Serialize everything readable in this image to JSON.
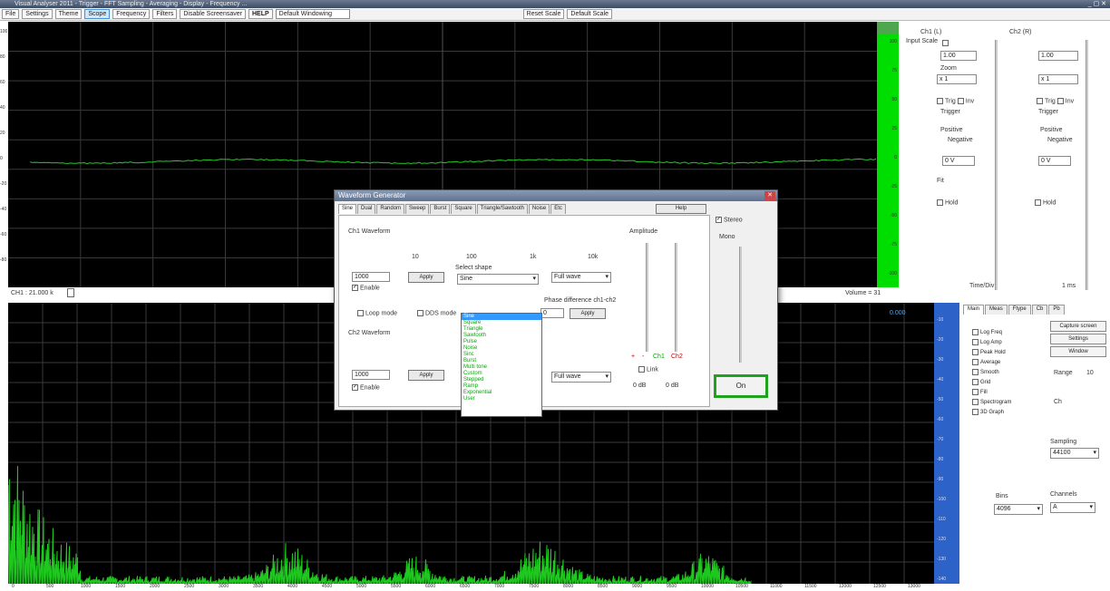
{
  "window": {
    "title": "Visual Analyser 2011 - Trigger - FFT Sampling - Averaging - Display - Frequency ..."
  },
  "menu": {
    "items": [
      "File",
      "Settings",
      "Theme",
      "Scope",
      "Frequency",
      "Filters",
      "Disable Screensaver",
      "HELP"
    ],
    "select_value": "Default Windowing",
    "reset_scale": "Reset Scale",
    "default_scale": "Default Scale"
  },
  "scope": {
    "y_labels": [
      "100",
      "80",
      "60",
      "40",
      "20",
      "0",
      "-20",
      "-40",
      "-60",
      "-80"
    ],
    "volume_label": "Volume = 31",
    "ch_label": "CH1 : 21.000 k",
    "meter_labels": [
      "100",
      "75",
      "50",
      "25",
      "0",
      "-25",
      "-50",
      "-75",
      "-100"
    ]
  },
  "spectrum": {
    "readout": "0.000",
    "db_labels": [
      "-10",
      "-20",
      "-30",
      "-40",
      "-50",
      "-60",
      "-70",
      "-80",
      "-90",
      "-100",
      "-110",
      "-120",
      "-130",
      "-140"
    ],
    "x_labels": [
      "0",
      "500",
      "1000",
      "1500",
      "2000",
      "2500",
      "3000",
      "3500",
      "4000",
      "4500",
      "5000",
      "5500",
      "6000",
      "6500",
      "7000",
      "7500",
      "8000",
      "8500",
      "9000",
      "9500",
      "10000",
      "10500",
      "11000",
      "11500",
      "12000",
      "12500",
      "13000"
    ]
  },
  "right_panel": {
    "ch1": {
      "title": "Ch1 (L)",
      "input_label": "Input Scale",
      "input_value": "1.00",
      "zoom_label": "Zoom",
      "zoom_value": "x 1",
      "trigger_label": "Trigger",
      "items": [
        "Trig",
        "Inv",
        "Positive",
        "Negative"
      ],
      "dc_label": "0 V",
      "rel_label": "Fit",
      "flag": "Hold"
    },
    "ch2": {
      "title": "Ch2 (R)",
      "input_value": "1.00",
      "zoom_value": "x 1",
      "trigger_label": "Trigger",
      "items": [
        "Trig",
        "Inv",
        "Positive",
        "Negative"
      ],
      "dc_label": "0 V",
      "flag": "Hold"
    },
    "time_label": "Time/Div",
    "time_value": "1 ms"
  },
  "dialog": {
    "title": "Waveform Generator",
    "tabs": [
      "Sine",
      "Dual",
      "Random",
      "Sweep",
      "Burst",
      "Square",
      "Triangle/Sawtooth",
      "Noise",
      "Etc"
    ],
    "help": "Help",
    "ch1_label": "Ch1 Waveform",
    "ch2_label": "Ch2 Waveform",
    "ch1_freq": "1000",
    "ch2_freq": "1000",
    "ch1_freq_btn": "Apply",
    "ch2_freq_btn": "Apply",
    "enable": "Enable",
    "scale_labels": [
      "10",
      "100",
      "1k",
      "10k"
    ],
    "wave_label": "Select shape",
    "wave_selected": "Sine",
    "dd_items": [
      "Sine",
      "Square",
      "Triangle",
      "Sawtooth",
      "Pulse",
      "Noise",
      "Sinc",
      "Burst",
      "Multi tone",
      "Custom",
      "Stepped",
      "Ramp",
      "Exponential",
      "User"
    ],
    "fft_select": "Full wave",
    "loop_mode": "Loop mode",
    "dds_mode": "DDS mode",
    "phase_label": "Phase difference ch1-ch2",
    "phase_value": "0",
    "phase_btn": "Apply",
    "amplitude": "Amplitude",
    "amp_labels": [
      "+",
      "-",
      "Ch1",
      "Ch2"
    ],
    "link": "Link",
    "stereo": "Stereo",
    "ch1_amp": "0 dB",
    "ch2_amp": "0 dB",
    "mono_label": "Mono",
    "on": "On"
  },
  "rightlower": {
    "tabs": [
      "Main",
      "Meas",
      "Ftype",
      "Cb",
      "Pb"
    ],
    "opts": [
      "Log Freq",
      "Log Amp",
      "Peak Hold",
      "Average",
      "Smooth",
      "Grid",
      "Fill",
      "Spectrogram",
      "3D Graph"
    ],
    "capture": "Capture screen",
    "setting_btn": "Settings",
    "window_btn": "Window",
    "range_label": "Range",
    "range_value": "10",
    "ch_label": "Ch",
    "bins_label": "Bins",
    "bins_value": "4096",
    "sr_label": "Sampling",
    "sr_value": "44100",
    "choose_label": "Channels",
    "choose_value": "A"
  }
}
